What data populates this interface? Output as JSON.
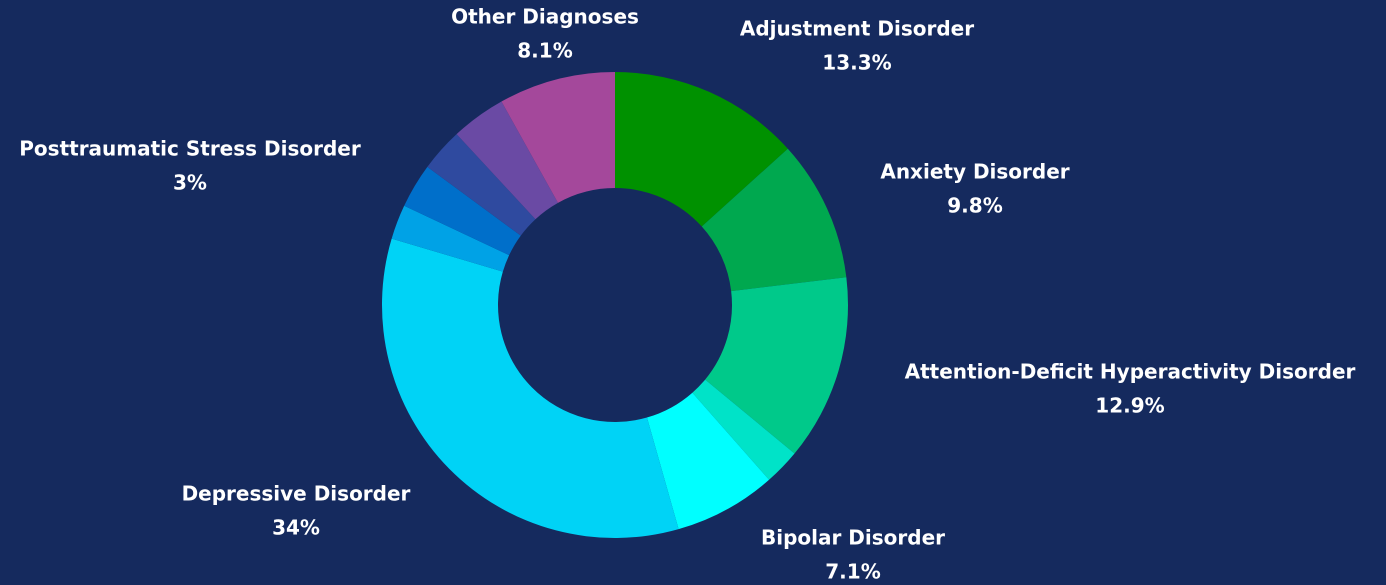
{
  "chart_data": {
    "type": "donut",
    "categories": [
      "Adjustment Disorder",
      "Anxiety Disorder",
      "Attention-Deficit Hyperactivity Disorder",
      null,
      "Bipolar Disorder",
      "Depressive Disorder",
      null,
      null,
      "Posttraumatic Stress Disorder",
      null,
      "Other Diagnoses"
    ],
    "values": [
      13.3,
      9.8,
      12.9,
      2.5,
      7.1,
      34,
      2.4,
      3.1,
      3,
      3.8,
      8.1
    ],
    "value_labels": [
      "13.3%",
      "9.8%",
      "12.9%",
      null,
      "7.1%",
      "34%",
      null,
      null,
      "3%",
      null,
      "8.1%"
    ],
    "colors": [
      "#009100",
      "#00a84f",
      "#00c98a",
      "#00e3c8",
      "#00ffff",
      "#00d3f6",
      "#00a2e6",
      "#006fca",
      "#2f4a9f",
      "#6a4aa4",
      "#a4489b"
    ]
  }
}
